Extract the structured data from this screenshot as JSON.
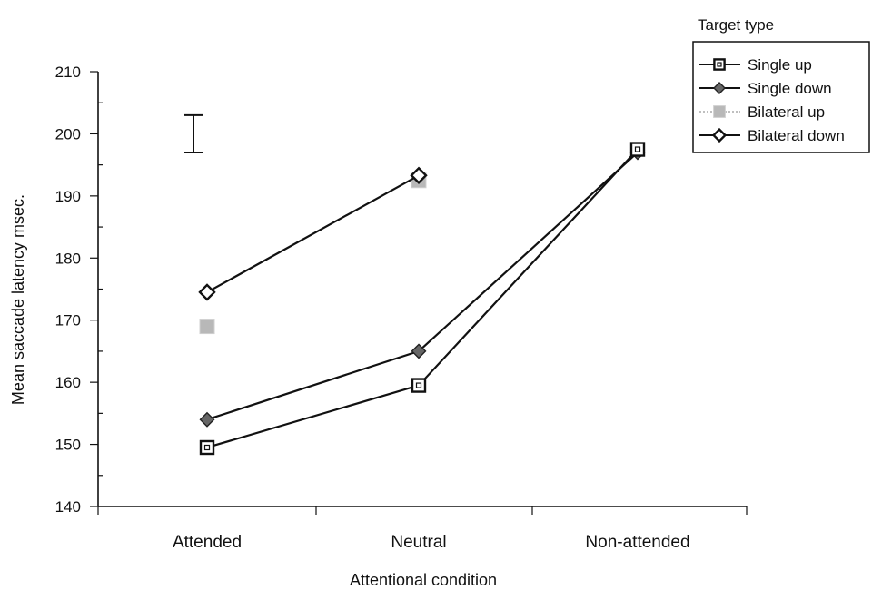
{
  "chart_data": {
    "type": "line",
    "xlabel": "Attentional condition",
    "ylabel": "Mean saccade latency msec.",
    "categories": [
      "Attended",
      "Neutral",
      "Non-attended"
    ],
    "ylim": [
      140,
      210
    ],
    "yticks": [
      140,
      150,
      160,
      170,
      180,
      190,
      200,
      210
    ],
    "error_bar": {
      "category": "Attended",
      "low": 197,
      "high": 203
    },
    "legend": {
      "title": "Target type",
      "position": "top-right"
    },
    "series": [
      {
        "name": "Single up",
        "marker": "square-open",
        "values": [
          149.5,
          159.5,
          197.5
        ]
      },
      {
        "name": "Single down",
        "marker": "diamond-filled",
        "values": [
          154,
          165,
          197
        ]
      },
      {
        "name": "Bilateral up",
        "marker": "square-gray",
        "values": [
          169,
          192.5,
          null
        ]
      },
      {
        "name": "Bilateral down",
        "marker": "diamond-open",
        "values": [
          174.5,
          193.3,
          null
        ]
      }
    ]
  }
}
